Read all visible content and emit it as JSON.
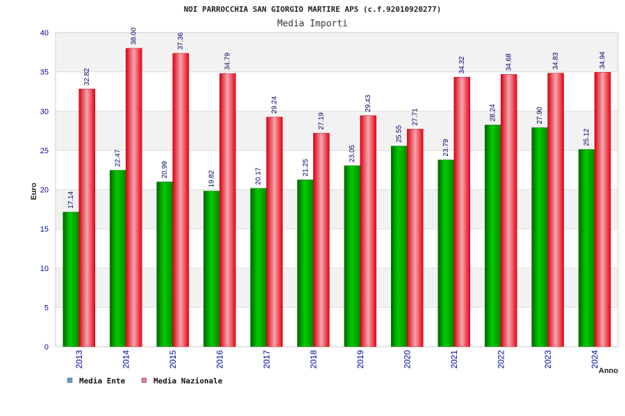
{
  "chart_data": {
    "type": "bar",
    "title": "NOI PARROCCHIA SAN GIORGIO MARTIRE APS (c.f.92010920277)",
    "subtitle": "Media Importi",
    "xlabel": "Anno",
    "ylabel": "Euro",
    "ylim": [
      0,
      40
    ],
    "yticks": [
      0,
      5,
      10,
      15,
      20,
      25,
      30,
      35,
      40
    ],
    "grid": "horizontal bands",
    "legend_position": "bottom-left",
    "categories": [
      "2013",
      "2014",
      "2015",
      "2016",
      "2017",
      "2018",
      "2019",
      "2020",
      "2021",
      "2022",
      "2023",
      "2024"
    ],
    "series": [
      {
        "name": "Media Ente",
        "legend_color": "#5b9bd5",
        "bar_color": "#00aa00",
        "values": [
          17.14,
          22.47,
          20.99,
          19.82,
          20.17,
          21.25,
          23.05,
          25.55,
          23.79,
          28.24,
          27.9,
          25.12
        ],
        "labels": [
          "17.14",
          "22.47",
          "20.99",
          "19.82",
          "20.17",
          "21.25",
          "23.05",
          "25.55",
          "23.79",
          "28.24",
          "27.90",
          "25.12"
        ]
      },
      {
        "name": "Media Nazionale",
        "legend_color": "#e07aa0",
        "bar_color": "#ee1122",
        "values": [
          32.82,
          38.0,
          37.36,
          34.79,
          29.24,
          27.19,
          29.43,
          27.71,
          34.32,
          34.68,
          34.83,
          34.94
        ],
        "labels": [
          "32.82",
          "38.00",
          "37.36",
          "34.79",
          "29.24",
          "27.19",
          "29.43",
          "27.71",
          "34.32",
          "34.68",
          "34.83",
          "34.94"
        ]
      }
    ]
  }
}
